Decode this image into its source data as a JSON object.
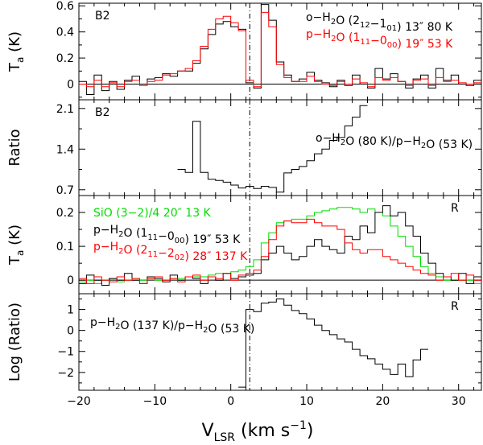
{
  "chart_data": {
    "type": "line",
    "style": "step",
    "shared_x": {
      "label_main": "V",
      "label_sub": "LSR",
      "label_unit": "(km s",
      "label_exp": "−1",
      "label_close": ")",
      "range": [
        -20,
        33
      ],
      "ticks": [
        -20,
        -10,
        0,
        10,
        20,
        30
      ],
      "tick_labels": [
        "−20",
        "−10",
        "0",
        "10",
        "20",
        "30"
      ]
    },
    "vline_x": 2.5,
    "panels": [
      {
        "id": "p1",
        "ylabel_main": "T",
        "ylabel_sub": "a",
        "ylabel_unit": "(K)",
        "ylim": [
          -0.12,
          0.62
        ],
        "yticks": [
          0,
          0.2,
          0.4,
          0.6
        ],
        "ytick_labels": [
          "0",
          "0.2",
          "0.4",
          "0.6"
        ],
        "zero_line": true,
        "corner_label": "B2",
        "legend": [
          {
            "color": "#000000",
            "prefix": "o−H",
            "sub1": "2",
            "mid": "O (2",
            "sub2": "12",
            "dash": "−1",
            "sub3": "01",
            "suffix": ") 13",
            "tail": "″ 80 K"
          },
          {
            "color": "#ff0000",
            "prefix": "p−H",
            "sub1": "2",
            "mid": "O (1",
            "sub2": "11",
            "dash": "−0",
            "sub3": "00",
            "suffix": ") 19",
            "tail": "″ 53 K"
          }
        ],
        "series": [
          {
            "name": "o-H2O (2_12-1_01) 13″ 80 K",
            "color": "#000000",
            "x_start": -20,
            "step": 1.0,
            "values": [
              0.02,
              -0.08,
              0.07,
              -0.05,
              0.02,
              -0.04,
              0.03,
              0.06,
              0.0,
              0.04,
              0.05,
              0.08,
              0.06,
              0.1,
              0.1,
              0.16,
              0.27,
              0.38,
              0.46,
              0.48,
              0.44,
              0.42,
              0.01,
              -0.03,
              0.61,
              0.49,
              0.17,
              0.07,
              0.02,
              0.04,
              0.09,
              0.03,
              0.01,
              -0.02,
              0.03,
              -0.01,
              0.07,
              0.0,
              -0.03,
              0.12,
              0.04,
              0.08,
              0.02,
              -0.03,
              0.04,
              0.07,
              -0.03,
              0.12,
              0.03,
              0.07,
              0.0,
              -0.01,
              0.03
            ]
          },
          {
            "name": "p-H2O (1_11-0_00) 19″ 53 K",
            "color": "#ff0000",
            "x_start": -20,
            "step": 1.0,
            "values": [
              0.0,
              -0.02,
              0.03,
              -0.02,
              0.01,
              -0.02,
              0.02,
              0.03,
              -0.01,
              0.02,
              0.03,
              0.07,
              0.08,
              0.1,
              0.12,
              0.18,
              0.29,
              0.42,
              0.5,
              0.52,
              0.47,
              0.41,
              0.03,
              -0.02,
              0.55,
              0.44,
              0.15,
              0.05,
              0.02,
              0.02,
              0.06,
              0.02,
              0.0,
              -0.01,
              0.02,
              0.0,
              0.04,
              0.01,
              -0.02,
              0.05,
              0.03,
              0.05,
              0.02,
              -0.01,
              0.03,
              0.04,
              -0.01,
              0.05,
              0.02,
              0.03,
              0.01,
              0.0,
              0.01
            ]
          }
        ]
      },
      {
        "id": "p2",
        "ylabel_main": "Ratio",
        "ylim": [
          0.6,
          2.25
        ],
        "yticks": [
          0.7,
          1.4,
          2.1
        ],
        "ytick_labels": [
          "0.7",
          "1.4",
          "2.1"
        ],
        "zero_line": false,
        "corner_label": "B2",
        "legend": [
          {
            "color": "#000000",
            "prefix": "o−H",
            "sub1": "2",
            "mid": "O (80 K)/p−H",
            "sub2": "2",
            "dash": "",
            "sub3": "",
            "suffix": "O (53 K)",
            "tail": ""
          }
        ],
        "series": [
          {
            "name": "o-H2O (80 K)/p-H2O (53 K)",
            "color": "#000000",
            "x_start": -7,
            "step": 1.0,
            "values": [
              1.05,
              1.0,
              1.88,
              1.0,
              0.88,
              0.86,
              0.83,
              0.78,
              0.73,
              0.76,
              0.72,
              0.76,
              0.74,
              0.66,
              0.99,
              1.05,
              1.1,
              1.2,
              1.32,
              1.4,
              1.55,
              1.6,
              1.8,
              1.95,
              2.15
            ]
          }
        ]
      },
      {
        "id": "p3",
        "ylabel_main": "T",
        "ylabel_sub": "a",
        "ylabel_unit": "(K)",
        "ylim": [
          -0.04,
          0.25
        ],
        "yticks": [
          0,
          0.1,
          0.2
        ],
        "ytick_labels": [
          "0",
          "0.1",
          "0.2"
        ],
        "zero_line": true,
        "corner_label": "R",
        "legend": [
          {
            "color": "#00dd00",
            "prefix": "SiO (3−2)/4 20",
            "sub1": "",
            "mid": "″ 13 K",
            "sub2": "",
            "dash": "",
            "sub3": "",
            "suffix": "",
            "tail": ""
          },
          {
            "color": "#000000",
            "prefix": "p−H",
            "sub1": "2",
            "mid": "O (1",
            "sub2": "11",
            "dash": "−0",
            "sub3": "00",
            "suffix": ") 19",
            "tail": "″ 53 K"
          },
          {
            "color": "#ff0000",
            "prefix": "p−H",
            "sub1": "2",
            "mid": "O (2",
            "sub2": "11",
            "dash": "−2",
            "sub3": "02",
            "suffix": ") 28",
            "tail": "″ 137 K"
          }
        ],
        "series": [
          {
            "name": "SiO (3-2)/4 20″ 13 K",
            "color": "#00dd00",
            "x_start": -20,
            "step": 1.0,
            "values": [
              -0.005,
              0.0,
              -0.01,
              0.0,
              0.005,
              -0.005,
              0.0,
              0.005,
              0.0,
              0.005,
              0.0,
              0.0,
              0.005,
              0.005,
              0.01,
              0.01,
              0.01,
              0.015,
              0.02,
              0.02,
              0.025,
              0.03,
              0.04,
              0.06,
              0.11,
              0.14,
              0.17,
              0.175,
              0.18,
              0.18,
              0.19,
              0.2,
              0.205,
              0.21,
              0.215,
              0.215,
              0.21,
              0.2,
              0.21,
              0.2,
              0.19,
              0.16,
              0.13,
              0.1,
              0.07,
              0.04,
              0.02,
              0.01,
              0.0,
              0.0,
              0.0,
              0.0,
              -0.01
            ]
          },
          {
            "name": "p-H2O (1_11-0_00) 19″ 53 K",
            "color": "#000000",
            "x_start": -20,
            "step": 1.0,
            "values": [
              -0.01,
              0.015,
              0.0,
              -0.015,
              0.005,
              0.0,
              0.02,
              0.0,
              -0.01,
              0.01,
              0.005,
              -0.005,
              0.015,
              0.0,
              0.01,
              0.005,
              -0.01,
              0.01,
              0.0,
              0.02,
              0.005,
              0.01,
              0.015,
              0.02,
              0.06,
              0.08,
              0.1,
              0.08,
              0.06,
              0.07,
              0.1,
              0.12,
              0.1,
              0.09,
              0.08,
              0.13,
              0.12,
              0.16,
              0.14,
              0.2,
              0.22,
              0.19,
              0.2,
              0.16,
              0.13,
              0.08,
              0.05,
              0.02,
              0.01,
              0.0,
              0.02,
              -0.01,
              0.01
            ]
          },
          {
            "name": "p-H2O (2_11-2_02) 28″ 137 K",
            "color": "#ff0000",
            "x_start": -20,
            "step": 1.0,
            "values": [
              0.005,
              -0.01,
              0.01,
              0.0,
              -0.005,
              0.01,
              0.0,
              0.005,
              -0.01,
              0.005,
              0.01,
              0.0,
              0.005,
              -0.005,
              0.01,
              0.015,
              0.0,
              0.01,
              0.005,
              0.02,
              0.0,
              0.015,
              0.02,
              0.03,
              0.07,
              0.12,
              0.16,
              0.175,
              0.17,
              0.17,
              0.18,
              0.17,
              0.16,
              0.16,
              0.15,
              0.11,
              0.09,
              0.08,
              0.09,
              0.09,
              0.07,
              0.06,
              0.05,
              0.04,
              0.03,
              0.02,
              0.015,
              0.0,
              0.01,
              0.02,
              0.0,
              0.015,
              0.0
            ]
          }
        ]
      },
      {
        "id": "p4",
        "ylabel_main": "Log (Ratio)",
        "ylim": [
          -2.85,
          1.75
        ],
        "yticks": [
          -2,
          -1,
          0,
          1
        ],
        "ytick_labels": [
          "−2",
          "−1",
          "0",
          "1"
        ],
        "zero_line": false,
        "corner_label": "R",
        "legend": [
          {
            "color": "#000000",
            "prefix": "p−H",
            "sub1": "2",
            "mid": "O (137 K)/p−H",
            "sub2": "2",
            "dash": "",
            "sub3": "",
            "suffix": "O (53 K)",
            "tail": ""
          }
        ],
        "series": [
          {
            "name": "p-H2O (137 K)/p-H2O (53 K)",
            "color": "#000000",
            "x_start": 1,
            "step": 1.0,
            "values": [
              -2.7,
              1.0,
              0.9,
              1.3,
              1.35,
              1.5,
              1.2,
              0.95,
              0.8,
              0.55,
              0.25,
              0.0,
              -0.2,
              -0.4,
              -0.55,
              -0.9,
              -1.2,
              -1.35,
              -1.6,
              -1.85,
              -2.1,
              -1.6,
              -2.2,
              -1.4,
              -0.9
            ]
          }
        ]
      }
    ]
  }
}
